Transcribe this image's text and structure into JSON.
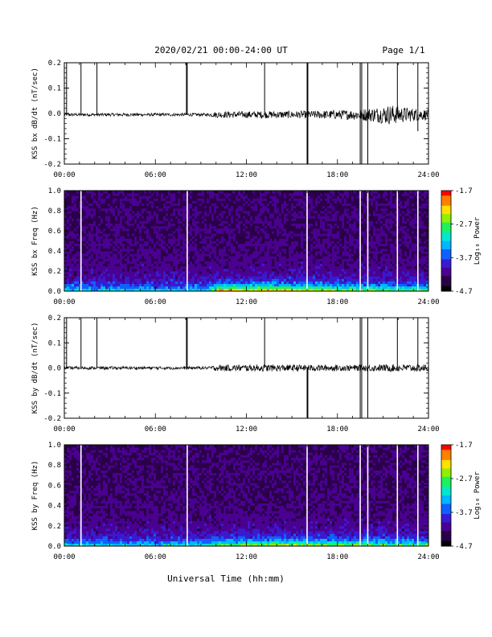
{
  "header": {
    "title": "2020/02/21  00:00-24:00 UT",
    "page": "Page 1/1"
  },
  "xlabel": "Universal Time (hh:mm)",
  "colors": {
    "trace": "#000000",
    "gap_line_spec": "#ffffff",
    "colormap": [
      "#000000",
      "#2a0048",
      "#4a0090",
      "#3a1ad0",
      "#1060ff",
      "#00b8ff",
      "#00e8d0",
      "#20f060",
      "#90f000",
      "#ffe000",
      "#ff8000",
      "#ff0000"
    ]
  },
  "chart_data": [
    {
      "type": "line",
      "id": "bx-waveform",
      "ylabel": "KSS bx dB/dt (nT/sec)",
      "xlim": [
        0,
        24
      ],
      "ylim": [
        -0.2,
        0.2
      ],
      "yticks": [
        -0.2,
        -0.1,
        0.0,
        0.1,
        0.2
      ],
      "yticklabels": [
        "-0.2",
        "-0.1",
        "0.0",
        "0.1",
        "0.2"
      ],
      "xticks": [
        0,
        6,
        12,
        18,
        24
      ],
      "xticklabels": [
        "00:00",
        "06:00",
        "12:00",
        "18:00",
        "24:00"
      ],
      "baseline": -0.005,
      "noise_envelope": [
        {
          "x": 0,
          "amp": 0.006
        },
        {
          "x": 9.5,
          "amp": 0.006
        },
        {
          "x": 10,
          "amp": 0.012
        },
        {
          "x": 13,
          "amp": 0.014
        },
        {
          "x": 16,
          "amp": 0.015
        },
        {
          "x": 19,
          "amp": 0.02
        },
        {
          "x": 20.5,
          "amp": 0.03
        },
        {
          "x": 21.5,
          "amp": 0.04
        },
        {
          "x": 22.5,
          "amp": 0.03
        },
        {
          "x": 24,
          "amp": 0.02
        }
      ],
      "spikes": [
        {
          "x": 0.15,
          "y0": -0.005,
          "y1": 0.21
        },
        {
          "x": 1.1,
          "y0": -0.005,
          "y1": 0.21
        },
        {
          "x": 2.15,
          "y0": -0.005,
          "y1": 0.21
        },
        {
          "x": 8.05,
          "y0": -0.005,
          "y1": 0.21
        },
        {
          "x": 8.1,
          "y0": -0.005,
          "y1": 0.21
        },
        {
          "x": 13.2,
          "y0": -0.005,
          "y1": 0.21
        },
        {
          "x": 16.0,
          "y0": -0.21,
          "y1": 0.21
        },
        {
          "x": 16.05,
          "y0": -0.21,
          "y1": 0.21
        },
        {
          "x": 19.5,
          "y0": -0.21,
          "y1": 0.21
        },
        {
          "x": 19.6,
          "y0": -0.21,
          "y1": 0.21
        },
        {
          "x": 20.0,
          "y0": -0.21,
          "y1": 0.21
        },
        {
          "x": 21.95,
          "y0": -0.005,
          "y1": 0.21
        },
        {
          "x": 23.3,
          "y0": -0.07,
          "y1": 0.21
        }
      ]
    },
    {
      "type": "heatmap",
      "id": "bx-spectrogram",
      "ylabel": "KSS bx Freq (Hz)",
      "xlim": [
        0,
        24
      ],
      "ylim": [
        0,
        1.0
      ],
      "yticks": [
        0.0,
        0.2,
        0.4,
        0.6,
        0.8,
        1.0
      ],
      "yticklabels": [
        "0.0",
        "0.2",
        "0.4",
        "0.6",
        "0.8",
        "1.0"
      ],
      "xticks": [
        0,
        6,
        12,
        18,
        24
      ],
      "xticklabels": [
        "00:00",
        "06:00",
        "12:00",
        "18:00",
        "24:00"
      ],
      "colorbar": {
        "label": "Log₁₀ Power",
        "range": [
          -4.7,
          -1.7
        ],
        "ticks": [
          -1.7,
          -2.7,
          -3.7,
          -4.7
        ],
        "ticklabels": [
          "-1.7",
          "-2.7",
          "-3.7",
          "-4.7"
        ]
      },
      "gaps": [
        1.1,
        8.1,
        16.0,
        19.5,
        20.0,
        21.95,
        23.3
      ],
      "low_band_strength": [
        {
          "x": 0,
          "v": 0.35
        },
        {
          "x": 9.5,
          "v": 0.35
        },
        {
          "x": 10,
          "v": 0.7
        },
        {
          "x": 14,
          "v": 0.75
        },
        {
          "x": 19,
          "v": 0.6
        },
        {
          "x": 24,
          "v": 0.5
        }
      ]
    },
    {
      "type": "line",
      "id": "by-waveform",
      "ylabel": "KSS by dB/dt (nT/sec)",
      "xlim": [
        0,
        24
      ],
      "ylim": [
        -0.2,
        0.2
      ],
      "yticks": [
        -0.2,
        -0.1,
        0.0,
        0.1,
        0.2
      ],
      "yticklabels": [
        "-0.2",
        "-0.1",
        "0.0",
        "0.1",
        "0.2"
      ],
      "xticks": [
        0,
        6,
        12,
        18,
        24
      ],
      "xticklabels": [
        "00:00",
        "06:00",
        "12:00",
        "18:00",
        "24:00"
      ],
      "baseline": 0.0,
      "noise_envelope": [
        {
          "x": 0,
          "amp": 0.006
        },
        {
          "x": 9.5,
          "amp": 0.006
        },
        {
          "x": 10,
          "amp": 0.012
        },
        {
          "x": 13,
          "amp": 0.014
        },
        {
          "x": 16,
          "amp": 0.013
        },
        {
          "x": 19,
          "amp": 0.012
        },
        {
          "x": 22,
          "amp": 0.015
        },
        {
          "x": 24,
          "amp": 0.015
        }
      ],
      "spikes": [
        {
          "x": 0.15,
          "y0": 0.0,
          "y1": 0.21
        },
        {
          "x": 1.1,
          "y0": 0.0,
          "y1": 0.21
        },
        {
          "x": 2.15,
          "y0": 0.0,
          "y1": 0.21
        },
        {
          "x": 8.05,
          "y0": 0.0,
          "y1": 0.21
        },
        {
          "x": 8.1,
          "y0": 0.0,
          "y1": 0.21
        },
        {
          "x": 13.2,
          "y0": 0.0,
          "y1": 0.21
        },
        {
          "x": 16.0,
          "y0": -0.21,
          "y1": 0.0
        },
        {
          "x": 16.05,
          "y0": -0.21,
          "y1": 0.0
        },
        {
          "x": 19.5,
          "y0": -0.21,
          "y1": 0.21
        },
        {
          "x": 19.6,
          "y0": -0.21,
          "y1": 0.21
        },
        {
          "x": 20.0,
          "y0": -0.21,
          "y1": 0.21
        },
        {
          "x": 21.95,
          "y0": 0.0,
          "y1": 0.21
        },
        {
          "x": 23.3,
          "y0": -0.01,
          "y1": 0.21
        }
      ]
    },
    {
      "type": "heatmap",
      "id": "by-spectrogram",
      "ylabel": "KSS by Freq (Hz)",
      "xlim": [
        0,
        24
      ],
      "ylim": [
        0,
        1.0
      ],
      "yticks": [
        0.0,
        0.2,
        0.4,
        0.6,
        0.8,
        1.0
      ],
      "yticklabels": [
        "0.0",
        "0.2",
        "0.4",
        "0.6",
        "0.8",
        "1.0"
      ],
      "xticks": [
        0,
        6,
        12,
        18,
        24
      ],
      "xticklabels": [
        "00:00",
        "06:00",
        "12:00",
        "18:00",
        "24:00"
      ],
      "colorbar": {
        "label": "Log₁₀ Power",
        "range": [
          -4.7,
          -1.7
        ],
        "ticks": [
          -1.7,
          -2.7,
          -3.7,
          -4.7
        ],
        "ticklabels": [
          "-1.7",
          "-2.7",
          "-3.7",
          "-4.7"
        ]
      },
      "gaps": [
        1.1,
        8.1,
        16.0,
        19.5,
        20.0,
        21.95,
        23.3
      ],
      "low_band_strength": [
        {
          "x": 0,
          "v": 0.35
        },
        {
          "x": 9.5,
          "v": 0.35
        },
        {
          "x": 10,
          "v": 0.55
        },
        {
          "x": 14,
          "v": 0.6
        },
        {
          "x": 19,
          "v": 0.55
        },
        {
          "x": 24,
          "v": 0.5
        }
      ]
    }
  ]
}
